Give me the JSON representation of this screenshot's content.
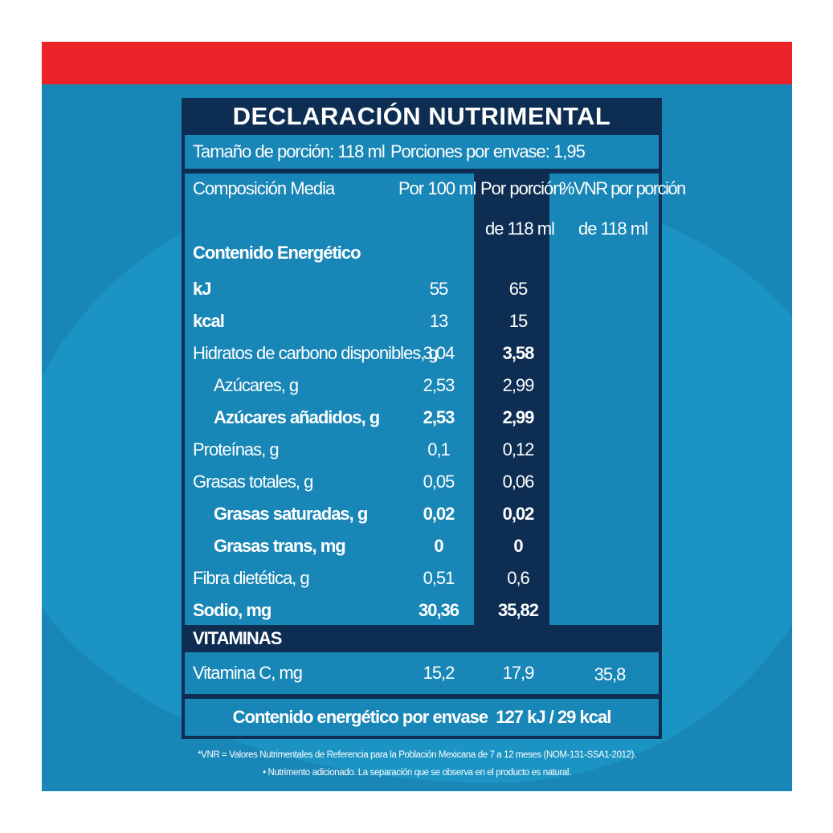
{
  "colors": {
    "red_bar": "#ec2228",
    "panel_blue": "#1886b6",
    "navy": "#0d2d52",
    "text": "#ffffff"
  },
  "table": {
    "title": "DECLARACIÓN NUTRIMENTAL",
    "serving_size": "Tamaño de porción: 118 ml",
    "servings_per_container": "Porciones por envase: 1,95",
    "headers": {
      "composition": "Composición Media",
      "per_100": "Por 100 ml",
      "per_portion_line1": "Por porción",
      "per_portion_line2": "de 118 ml",
      "vnr_line1": "%VNR por porción",
      "vnr_line2": "de 118 ml"
    },
    "energy_heading": "Contenido Energético",
    "rows": [
      {
        "label": "kJ",
        "per100": "55",
        "portion": "65"
      },
      {
        "label": "kcal",
        "per100": "13",
        "portion": "15"
      },
      {
        "label": "Hidratos de carbono disponibles, g",
        "per100": "3,04",
        "portion": "3,58"
      },
      {
        "label": "Azúcares, g",
        "per100": "2,53",
        "portion": "2,99"
      },
      {
        "label": "Azúcares añadidos, g",
        "per100": "2,53",
        "portion": "2,99"
      },
      {
        "label": "Proteínas, g",
        "per100": "0,1",
        "portion": "0,12"
      },
      {
        "label": "Grasas totales, g",
        "per100": "0,05",
        "portion": "0,06"
      },
      {
        "label": "Grasas saturadas, g",
        "per100": "0,02",
        "portion": "0,02"
      },
      {
        "label": "Grasas trans, mg",
        "per100": "0",
        "portion": "0"
      },
      {
        "label": "Fibra dietética, g",
        "per100": "0,51",
        "portion": "0,6"
      },
      {
        "label": "Sodio, mg",
        "per100": "30,36",
        "portion": "35,82"
      }
    ],
    "vitamins_heading": "VITAMINAS",
    "vitamin_c": {
      "label": "Vitamina C, mg",
      "per100": "15,2",
      "portion": "17,9",
      "vnr": "35,8"
    },
    "energy_total": "Contenido energético por envase  127 kJ / 29 kcal"
  },
  "footnotes": {
    "line1": "*VNR = Valores Nutrimentales de Referencia para la Población Mexicana de 7 a 12 meses (NOM-131-SSA1-2012).",
    "line2": "• Nutrimento adicionado. La separación que se observa en el producto es natural."
  }
}
